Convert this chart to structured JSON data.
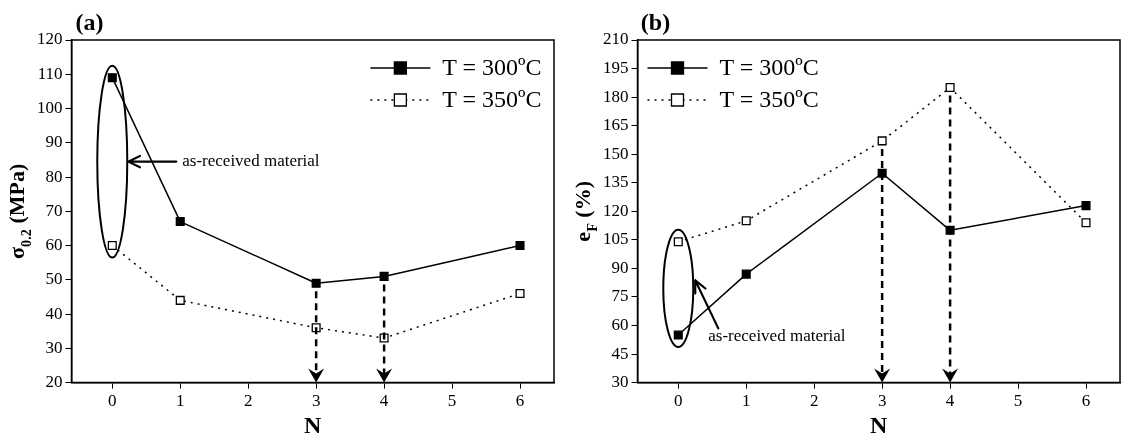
{
  "chart_data": [
    {
      "type": "line",
      "title": "(a)",
      "xlabel": "N",
      "ylabel": "σ$_{0.2}$ (MPa)",
      "x": [
        0,
        1,
        3,
        4,
        6
      ],
      "xlim": [
        -0.6,
        6.5
      ],
      "xticks": [
        0,
        1,
        2,
        3,
        4,
        5,
        6
      ],
      "ylim": [
        20,
        120
      ],
      "yticks": [
        20,
        30,
        40,
        50,
        60,
        70,
        80,
        90,
        100,
        110,
        120
      ],
      "legend": "top right",
      "marker": "square",
      "series": [
        {
          "name": "T = 300ºC",
          "color": "#000000",
          "line_style": "solid",
          "values": [
            109,
            67,
            49,
            51,
            60
          ]
        },
        {
          "name": "T = 350ºC",
          "color": "#000000",
          "line_style": "dotted",
          "values": [
            60,
            44,
            36,
            33,
            46
          ]
        }
      ],
      "ref_lines": [
        {
          "axis": "x",
          "value": 3,
          "line_style": "dashed"
        },
        {
          "axis": "x",
          "value": 4,
          "line_style": "dashed"
        }
      ],
      "annotations": [
        "as-received material"
      ]
    },
    {
      "type": "line",
      "title": "(b)",
      "xlabel": "N",
      "ylabel": "e$_{F}$ (%)",
      "x": [
        0,
        1,
        3,
        4,
        6
      ],
      "xlim": [
        -0.6,
        6.5
      ],
      "xticks": [
        0,
        1,
        2,
        3,
        4,
        5,
        6
      ],
      "ylim": [
        30,
        210
      ],
      "yticks": [
        30,
        45,
        60,
        75,
        90,
        105,
        120,
        135,
        150,
        165,
        180,
        195,
        210
      ],
      "legend": "top left",
      "marker": "square",
      "series": [
        {
          "name": "T = 300ºC",
          "color": "#000000",
          "line_style": "solid",
          "values": [
            55,
            87,
            140,
            110,
            123
          ]
        },
        {
          "name": "T = 350ºC",
          "color": "#000000",
          "line_style": "dotted",
          "values": [
            104,
            115,
            157,
            185,
            114
          ]
        }
      ],
      "ref_lines": [
        {
          "axis": "x",
          "value": 3,
          "line_style": "dashed"
        },
        {
          "axis": "x",
          "value": 4,
          "line_style": "dashed"
        }
      ],
      "annotations": [
        "as-received material"
      ]
    }
  ]
}
